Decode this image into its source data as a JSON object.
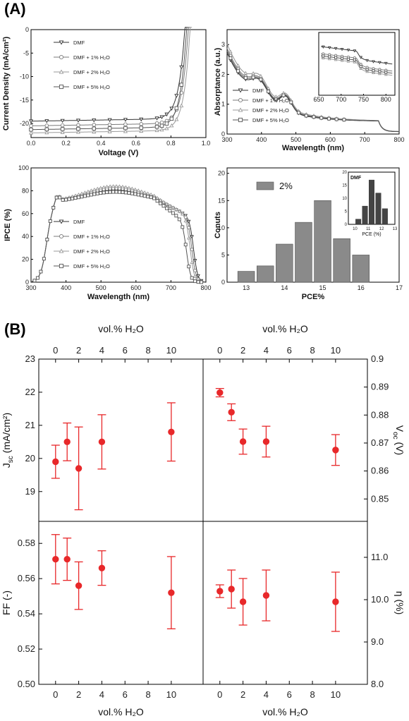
{
  "panel_labels": [
    "(A)",
    "(B)"
  ],
  "legend_entries": [
    "DMF",
    "DMF + 1% H₂O",
    "DMF + 2% H₂O",
    "DMF + 5% H₂O"
  ],
  "chart_data": [
    {
      "id": "jv",
      "type": "line",
      "xlabel": "Voltage (V)",
      "ylabel": "Current Density (mA/cm²)",
      "xlim": [
        0.0,
        1.0
      ],
      "ylim": [
        -23,
        0
      ],
      "xticks": [
        "0.0",
        "0.2",
        "0.4",
        "0.6",
        "0.8",
        "1.0"
      ],
      "yticks": [
        "0",
        "-5",
        "-10",
        "-15",
        "-20"
      ],
      "series": [
        {
          "name": "DMF",
          "marker": "triangle-down",
          "jsc": 19.5,
          "voc": 0.88
        },
        {
          "name": "DMF + 1% H₂O",
          "marker": "circle",
          "jsc": 20.5,
          "voc": 0.9
        },
        {
          "name": "DMF + 2% H₂O",
          "marker": "triangle-up",
          "jsc": 22.0,
          "voc": 0.91
        },
        {
          "name": "DMF + 5% H₂O",
          "marker": "square",
          "jsc": 21.3,
          "voc": 0.89
        }
      ]
    },
    {
      "id": "abs",
      "type": "line",
      "xlabel": "Wavelength (nm)",
      "ylabel": "Absorptance (a.u.)",
      "xlim": [
        300,
        800
      ],
      "ylim": [
        0,
        3.5
      ],
      "xticks": [
        "300",
        "400",
        "500",
        "600",
        "700",
        "800"
      ],
      "yticks": [
        "0",
        "1",
        "2",
        "3"
      ],
      "inset_xticks": [
        "650",
        "700",
        "750",
        "800"
      ],
      "series": [
        {
          "name": "DMF",
          "marker": "triangle-down"
        },
        {
          "name": "DMF + 1% H₂O",
          "marker": "circle"
        },
        {
          "name": "DMF + 2% H₂O",
          "marker": "triangle-up"
        },
        {
          "name": "DMF + 5% H₂O",
          "marker": "square"
        }
      ]
    },
    {
      "id": "ipce",
      "type": "line",
      "xlabel": "Wavelength (nm)",
      "ylabel": "IPCE (%)",
      "xlim": [
        300,
        800
      ],
      "ylim": [
        0,
        100
      ],
      "xticks": [
        "300",
        "400",
        "500",
        "600",
        "700",
        "800"
      ],
      "yticks": [
        "0",
        "20",
        "40",
        "60",
        "80",
        "100"
      ],
      "series": [
        {
          "name": "DMF",
          "marker": "triangle-down",
          "peak": 80
        },
        {
          "name": "DMF + 1% H₂O",
          "marker": "circle",
          "peak": 82
        },
        {
          "name": "DMF + 2% H₂O",
          "marker": "triangle-up",
          "peak": 84
        },
        {
          "name": "DMF + 5% H₂O",
          "marker": "square",
          "peak": 79
        }
      ]
    },
    {
      "id": "hist",
      "type": "bar",
      "xlabel": "PCE%",
      "ylabel": "Conuts",
      "xlim": [
        12.5,
        17
      ],
      "ylim": [
        0,
        21
      ],
      "xticks": [
        "13",
        "14",
        "15",
        "16",
        "17"
      ],
      "yticks": [
        "0",
        "5",
        "10",
        "15",
        "20"
      ],
      "legend": "2%",
      "bins": [
        13,
        13.5,
        14,
        14.5,
        15,
        15.5,
        16
      ],
      "counts": [
        2,
        3,
        7,
        11,
        15,
        8,
        5
      ],
      "inset": {
        "label": "DMF",
        "xlabel": "PCE (%)",
        "xticks": [
          "10",
          "11",
          "12",
          "13"
        ],
        "yticks": [
          "0",
          "5",
          "10",
          "15",
          "20"
        ],
        "bins": [
          10.25,
          10.75,
          11.25,
          11.75,
          12.25
        ],
        "counts": [
          2,
          7,
          17,
          12,
          6
        ]
      }
    },
    {
      "id": "jsc_voc",
      "type": "scatter",
      "top_xlabel": "vol.% H₂O",
      "ylabel_left": "J",
      "ylabel_left_sub": "sc",
      "ylabel_left_unit": " (mA/cm²)",
      "ylabel_right": "V",
      "ylabel_right_sub": "oc",
      "ylabel_right_unit": " (V)",
      "xticks": [
        "0",
        "2",
        "4",
        "6",
        "8",
        "10"
      ],
      "yticks_left": [
        "19",
        "20",
        "21",
        "22",
        "23"
      ],
      "yticks_right": [
        "0.85",
        "0.86",
        "0.87",
        "0.88",
        "0.89",
        "0.9"
      ],
      "ylim_left": [
        18.1,
        23
      ],
      "ylim_right": [
        0.842,
        0.9
      ],
      "x": [
        0,
        1,
        2,
        4,
        10
      ],
      "jsc": {
        "y": [
          19.9,
          20.5,
          19.7,
          20.5,
          20.8
        ],
        "err": [
          0.5,
          0.57,
          1.25,
          0.82,
          0.88
        ]
      },
      "voc": {
        "y": [
          0.888,
          0.881,
          0.8705,
          0.8705,
          0.8675
        ],
        "err": [
          0.0015,
          0.003,
          0.0045,
          0.0055,
          0.0055
        ]
      }
    },
    {
      "id": "ff_eta",
      "type": "scatter",
      "bottom_xlabel": "vol.% H₂O",
      "ylabel_left": "FF (-)",
      "ylabel_right": "η (%)",
      "xticks": [
        "0",
        "2",
        "4",
        "6",
        "8",
        "10"
      ],
      "yticks_left": [
        "0.50",
        "0.52",
        "0.54",
        "0.56",
        "0.58"
      ],
      "yticks_right": [
        "8.0",
        "9.0",
        "10.0",
        "11.0"
      ],
      "ylim_left": [
        0.5,
        0.5925
      ],
      "ylim_right": [
        8.0,
        11.85
      ],
      "x": [
        0,
        1,
        2,
        4,
        10
      ],
      "ff": {
        "y": [
          0.571,
          0.571,
          0.556,
          0.566,
          0.552
        ],
        "err": [
          0.014,
          0.012,
          0.0135,
          0.0098,
          0.0205
        ]
      },
      "eta": {
        "y": [
          10.2,
          10.25,
          9.95,
          10.1,
          9.95
        ],
        "err": [
          0.15,
          0.45,
          0.55,
          0.6,
          0.7
        ]
      }
    }
  ]
}
